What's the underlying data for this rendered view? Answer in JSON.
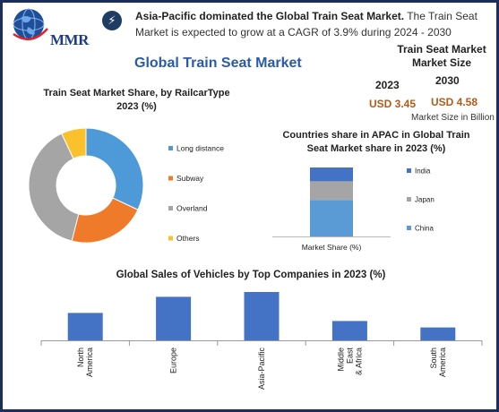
{
  "header": {
    "logo_text": "MMR",
    "bolt_icon": "lightning-bolt-icon",
    "headline_bold": "Asia-Pacific dominated the Global Train Seat Market.",
    "headline_rest_line1": " The Train Seat",
    "headline_line2": "Market is expected to grow at a CAGR of 3.9% during 2024 - 2030"
  },
  "main_title": "Global Train Seat Market",
  "market_size": {
    "title_line1": "Train Seat Market",
    "title_line2": "Market Size",
    "year_start": "2023",
    "year_end": "2030",
    "value_start": "USD 3.45",
    "value_end": "USD 4.58",
    "unit": "Market Size in Billion"
  },
  "colors": {
    "blue": "#4e9ad9",
    "orange": "#ef7a2a",
    "gray": "#a5a5a5",
    "yellow": "#fbc12d",
    "bar_blue": "#4472c4",
    "apac_india": "#4472c4",
    "apac_japan": "#a5a5a5",
    "apac_china": "#5b9bd5"
  },
  "chart_data": [
    {
      "type": "pie",
      "title_line1": "Train Seat Market Share, by RailcarType",
      "title_line2": "2023 (%)",
      "categories": [
        "Long distance",
        "Subway",
        "Overland",
        "Others"
      ],
      "values": [
        32,
        22,
        39,
        7
      ]
    },
    {
      "type": "bar",
      "stacked": true,
      "title_line1": "Countries share in APAC in Global Train",
      "title_line2": "Seat Market share in 2023 (%)",
      "categories": [
        "Market Share (%)"
      ],
      "series": [
        {
          "name": "China",
          "values": [
            53
          ]
        },
        {
          "name": "Japan",
          "values": [
            27
          ]
        },
        {
          "name": "India",
          "values": [
            20
          ]
        }
      ],
      "legend": "right"
    },
    {
      "type": "bar",
      "title": "Global Sales of Vehicles by Top Companies in 2023 (%)",
      "categories": [
        "North America",
        "Europe",
        "Asia-Pacific",
        "Middle East & Africa",
        "South America"
      ],
      "category_lines": [
        [
          "North",
          "America"
        ],
        [
          "Europe"
        ],
        [
          "Asia-Pacific"
        ],
        [
          "Middle",
          "East",
          "& Africa"
        ],
        [
          "South",
          "America"
        ]
      ],
      "values": [
        17,
        27,
        30,
        12,
        8
      ]
    }
  ]
}
